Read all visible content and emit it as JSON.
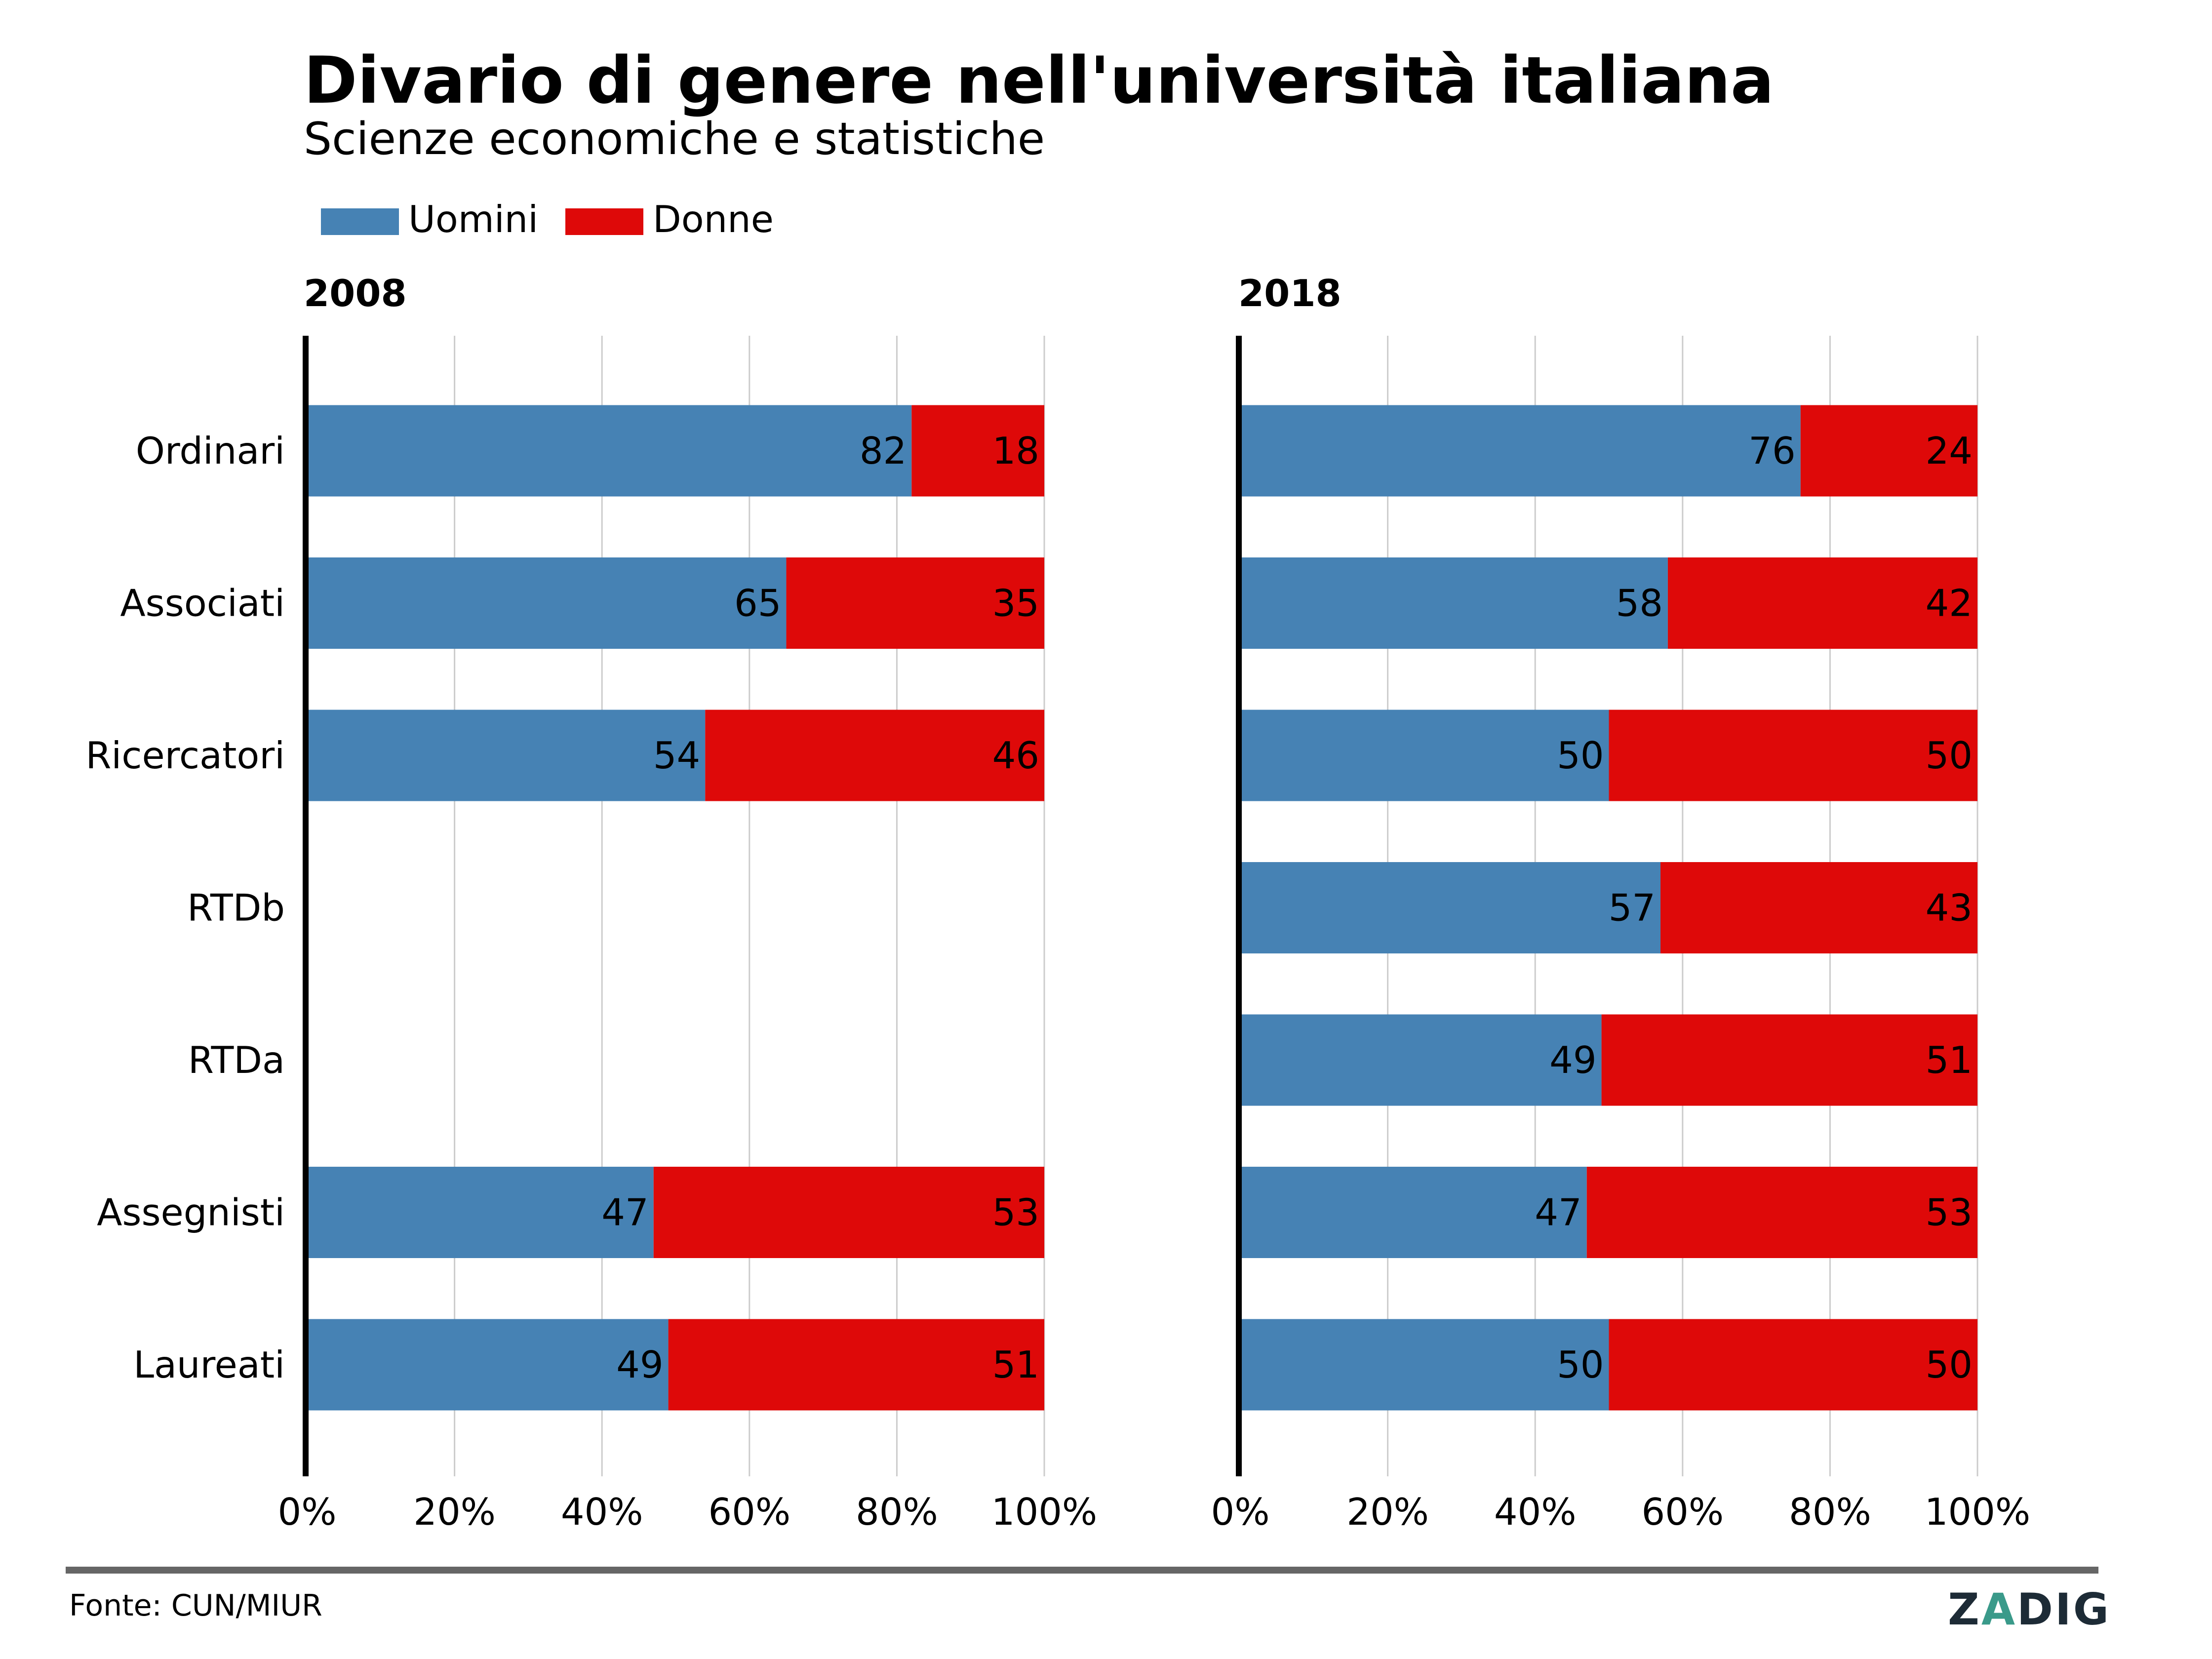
{
  "title": "Divario di genere nell'università italiana",
  "subtitle": "Scienze economiche e statistiche",
  "source": "Fonte: CUN/MIUR",
  "logo_text": "ZADIG",
  "colors": {
    "men": "#4682b4",
    "women": "#de0909",
    "grid": "#cccccc",
    "axis": "#000000",
    "rule": "#666666",
    "logo": "#1d2b36",
    "logo_accent": "#3a9a8a"
  },
  "chart_data": {
    "type": "bar",
    "orientation": "horizontal",
    "stacked": true,
    "legend": {
      "placement": "top-left",
      "entries": [
        "Uomini",
        "Donne"
      ]
    },
    "grid": true,
    "categories": [
      "Ordinari",
      "Associati",
      "Ricercatori",
      "RTDb",
      "RTDa",
      "Assegnisti",
      "Laureati"
    ],
    "xlim": [
      0,
      100
    ],
    "xticks": [
      "0%",
      "20%",
      "40%",
      "60%",
      "80%",
      "100%"
    ],
    "panels": [
      {
        "title": "2008",
        "series": [
          {
            "name": "Uomini",
            "values": [
              82,
              65,
              54,
              null,
              null,
              47,
              49
            ]
          },
          {
            "name": "Donne",
            "values": [
              18,
              35,
              46,
              null,
              null,
              53,
              51
            ]
          }
        ]
      },
      {
        "title": "2018",
        "series": [
          {
            "name": "Uomini",
            "values": [
              76,
              58,
              50,
              57,
              49,
              47,
              50
            ]
          },
          {
            "name": "Donne",
            "values": [
              24,
              42,
              50,
              43,
              51,
              53,
              50
            ]
          }
        ]
      }
    ]
  }
}
